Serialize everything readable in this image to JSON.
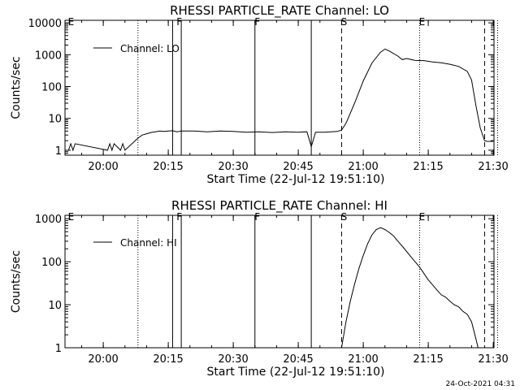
{
  "footer": {
    "timestamp": "24-Oct-2021 04:31"
  },
  "marker_lines": {
    "solid": [
      20.2667,
      20.3,
      20.5833,
      20.8
    ],
    "dotted": [
      20.1333,
      21.2167,
      21.5167
    ],
    "dashed": [
      20.9167,
      21.4667
    ]
  },
  "markers": [
    {
      "label": "E",
      "x": 19.8667
    },
    {
      "label": "F",
      "x": 20.2833
    },
    {
      "label": "F",
      "x": 20.5833
    },
    {
      "label": "S",
      "x": 20.9167
    },
    {
      "label": "E",
      "x": 21.2167
    }
  ],
  "chart_data": [
    {
      "type": "line",
      "title": "RHESSI PARTICLE_RATE Channel: LO",
      "xlabel": "Start Time (22-Jul-12 19:51:10)",
      "ylabel": "Counts/sec",
      "xlim": [
        19.8528,
        21.5028
      ],
      "ylim": [
        0.7,
        12000
      ],
      "yscale": "log",
      "grid": false,
      "legend": "top-left",
      "x_ticks": [
        {
          "value": 20.0,
          "label": "20:00"
        },
        {
          "value": 20.25,
          "label": "20:15"
        },
        {
          "value": 20.5,
          "label": "20:30"
        },
        {
          "value": 20.75,
          "label": "20:45"
        },
        {
          "value": 21.0,
          "label": "21:00"
        },
        {
          "value": 21.25,
          "label": "21:15"
        },
        {
          "value": 21.5,
          "label": "21:30"
        }
      ],
      "y_ticks": [
        {
          "value": 1,
          "label": "1"
        },
        {
          "value": 10,
          "label": "10"
        },
        {
          "value": 100,
          "label": "100"
        },
        {
          "value": 1000,
          "label": "1000"
        },
        {
          "value": 10000,
          "label": "10000"
        }
      ],
      "series": [
        {
          "name": "Channel: LO",
          "x": [
            19.8667,
            19.875,
            19.8833,
            19.8917,
            20.0167,
            20.025,
            20.0333,
            20.0417,
            20.0667,
            20.075,
            20.0833,
            20.1333,
            20.15,
            20.1667,
            20.1833,
            20.2,
            20.2167,
            20.2333,
            20.25,
            20.2667,
            20.2833,
            20.3,
            20.35,
            20.4,
            20.45,
            20.5,
            20.55,
            20.6,
            20.65,
            20.7,
            20.75,
            20.7833,
            20.8,
            20.8167,
            20.85,
            20.9,
            20.9167,
            20.9333,
            20.9667,
            21.0,
            21.0333,
            21.0667,
            21.0833,
            21.1,
            21.1333,
            21.15,
            21.1667,
            21.2,
            21.2333,
            21.2667,
            21.3,
            21.3333,
            21.3667,
            21.4,
            21.4167,
            21.4333,
            21.45,
            21.4667,
            21.475,
            21.4833,
            21.5
          ],
          "y": [
            1,
            1.6,
            1,
            1.6,
            1,
            1.6,
            1,
            1.6,
            1,
            1.6,
            1,
            2.4,
            3,
            3.3,
            3.6,
            3.8,
            4,
            3.9,
            4,
            4.1,
            3.8,
            4,
            4,
            3.8,
            4,
            3.9,
            3.7,
            3.8,
            3.6,
            3.8,
            3.7,
            3.8,
            1.3,
            3.7,
            3.7,
            3.9,
            4.3,
            7,
            30,
            150,
            550,
            1200,
            1500,
            1300,
            900,
            700,
            760,
            660,
            650,
            590,
            560,
            500,
            430,
            300,
            160,
            25,
            5,
            2,
            1.9,
            1.9,
            1.9
          ]
        }
      ]
    },
    {
      "type": "line",
      "title": "RHESSI PARTICLE_RATE Channel: HI",
      "xlabel": "Start Time (22-Jul-12 19:51:10)",
      "ylabel": "Counts/sec",
      "xlim": [
        19.8528,
        21.5028
      ],
      "ylim": [
        1,
        1200
      ],
      "yscale": "log",
      "grid": false,
      "legend": "top-left",
      "x_ticks": [
        {
          "value": 20.0,
          "label": "20:00"
        },
        {
          "value": 20.25,
          "label": "20:15"
        },
        {
          "value": 20.5,
          "label": "20:30"
        },
        {
          "value": 20.75,
          "label": "20:45"
        },
        {
          "value": 21.0,
          "label": "21:00"
        },
        {
          "value": 21.25,
          "label": "21:15"
        },
        {
          "value": 21.5,
          "label": "21:30"
        }
      ],
      "y_ticks": [
        {
          "value": 1,
          "label": "1"
        },
        {
          "value": 10,
          "label": "10"
        },
        {
          "value": 100,
          "label": "100"
        },
        {
          "value": 1000,
          "label": "1000"
        }
      ],
      "series": [
        {
          "name": "Channel: HI",
          "x": [
            20.9167,
            20.9333,
            20.95,
            20.9667,
            20.9833,
            21.0,
            21.0167,
            21.0333,
            21.05,
            21.0667,
            21.0833,
            21.1,
            21.1167,
            21.1333,
            21.15,
            21.1833,
            21.2167,
            21.25,
            21.2833,
            21.3,
            21.3167,
            21.3333,
            21.35,
            21.3667,
            21.3833,
            21.4,
            21.4167,
            21.4333,
            21.4417
          ],
          "y": [
            1,
            4,
            12,
            30,
            70,
            140,
            260,
            420,
            560,
            620,
            560,
            480,
            400,
            300,
            230,
            130,
            75,
            38,
            22,
            17,
            15,
            12,
            10,
            9,
            7,
            6,
            4,
            1.6,
            1
          ]
        }
      ]
    }
  ]
}
